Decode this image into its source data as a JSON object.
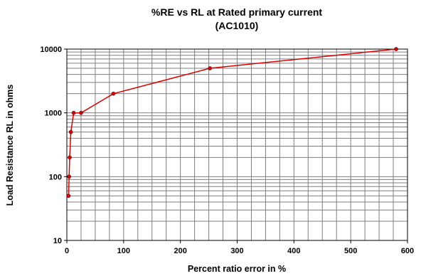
{
  "chart_data": {
    "type": "line",
    "title_lines": [
      "%RE vs RL at Rated primary current",
      "(AC1010)"
    ],
    "xlabel": "Percent ratio error in %",
    "ylabel": "Load Resistance RL in ohms",
    "xlim": [
      0,
      600
    ],
    "ylim": [
      10,
      10000
    ],
    "y_scale": "log",
    "grid": true,
    "x_ticks": [
      "0",
      "100",
      "200",
      "300",
      "400",
      "500",
      "600"
    ],
    "y_ticks": [
      "10",
      "100",
      "1000",
      "10000"
    ],
    "series": [
      {
        "color": "#dd0000",
        "x": [
          3,
          4,
          5,
          7,
          12,
          25,
          82,
          252,
          580
        ],
        "y": [
          50,
          100,
          200,
          500,
          1000,
          1000,
          2000,
          5000,
          10000
        ]
      }
    ]
  }
}
